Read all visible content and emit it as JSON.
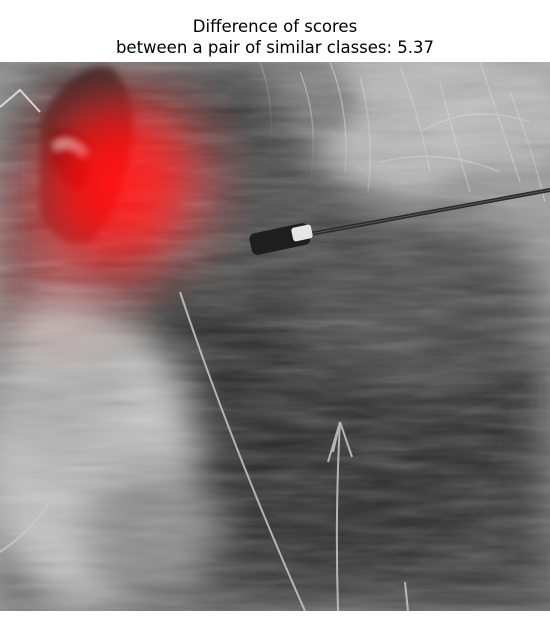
{
  "title": {
    "line1": "Difference of scores",
    "line2": "between a pair of similar classes: 5.37"
  },
  "image": {
    "subject": "grayscale photo of a long-haired dog with a saliency heatmap overlay",
    "overlay_color": "#ff0000"
  }
}
